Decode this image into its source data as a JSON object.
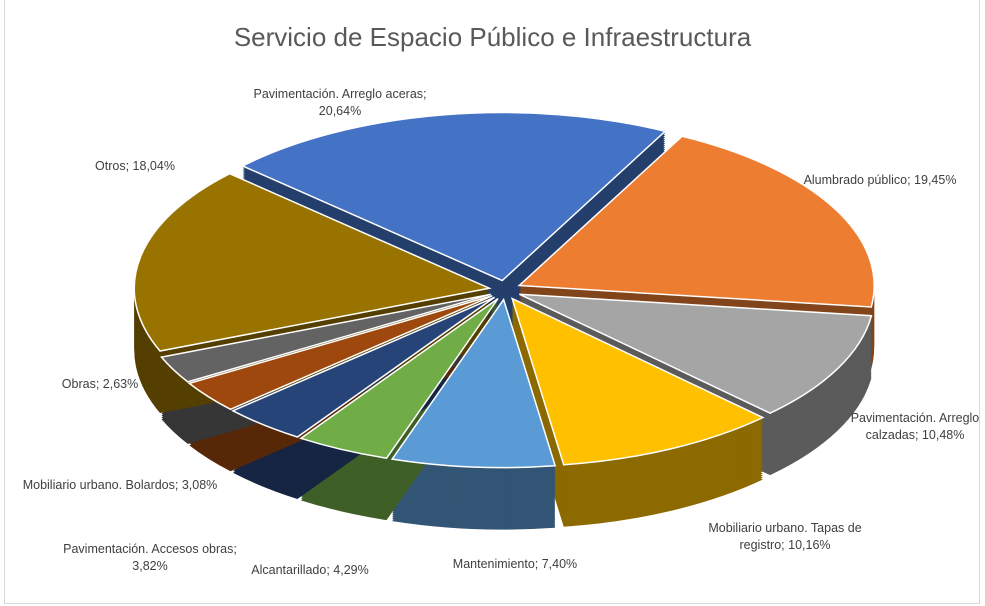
{
  "chart_data": {
    "type": "pie",
    "title": "Servicio de Espacio Público e Infraestructura",
    "values": [
      20.64,
      19.45,
      10.48,
      10.16,
      7.4,
      4.29,
      3.82,
      3.08,
      2.63,
      18.04
    ],
    "value_labels": [
      "Pavimentación.  Arreglo aceras; 20,64%",
      "Alumbrado público; 19,45%",
      "Pavimentación.  Arreglo calzadas; 10,48%",
      "Mobiliario urbano. Tapas de registro; 10,16%",
      "Mantenimiento;  7,40%",
      "Alcantarillado;  4,29%",
      "Pavimentación.  Accesos obras; 3,82%",
      "Mobiliario urbano. Bolardos; 3,08%",
      "Obras; 2,63%",
      "Otros; 18,04%"
    ],
    "colors": [
      "#4472c4",
      "#ed7d31",
      "#a5a5a5",
      "#ffc000",
      "#5b9bd5",
      "#70ad47",
      "#264478",
      "#9e480e",
      "#636363",
      "#997300"
    ]
  }
}
